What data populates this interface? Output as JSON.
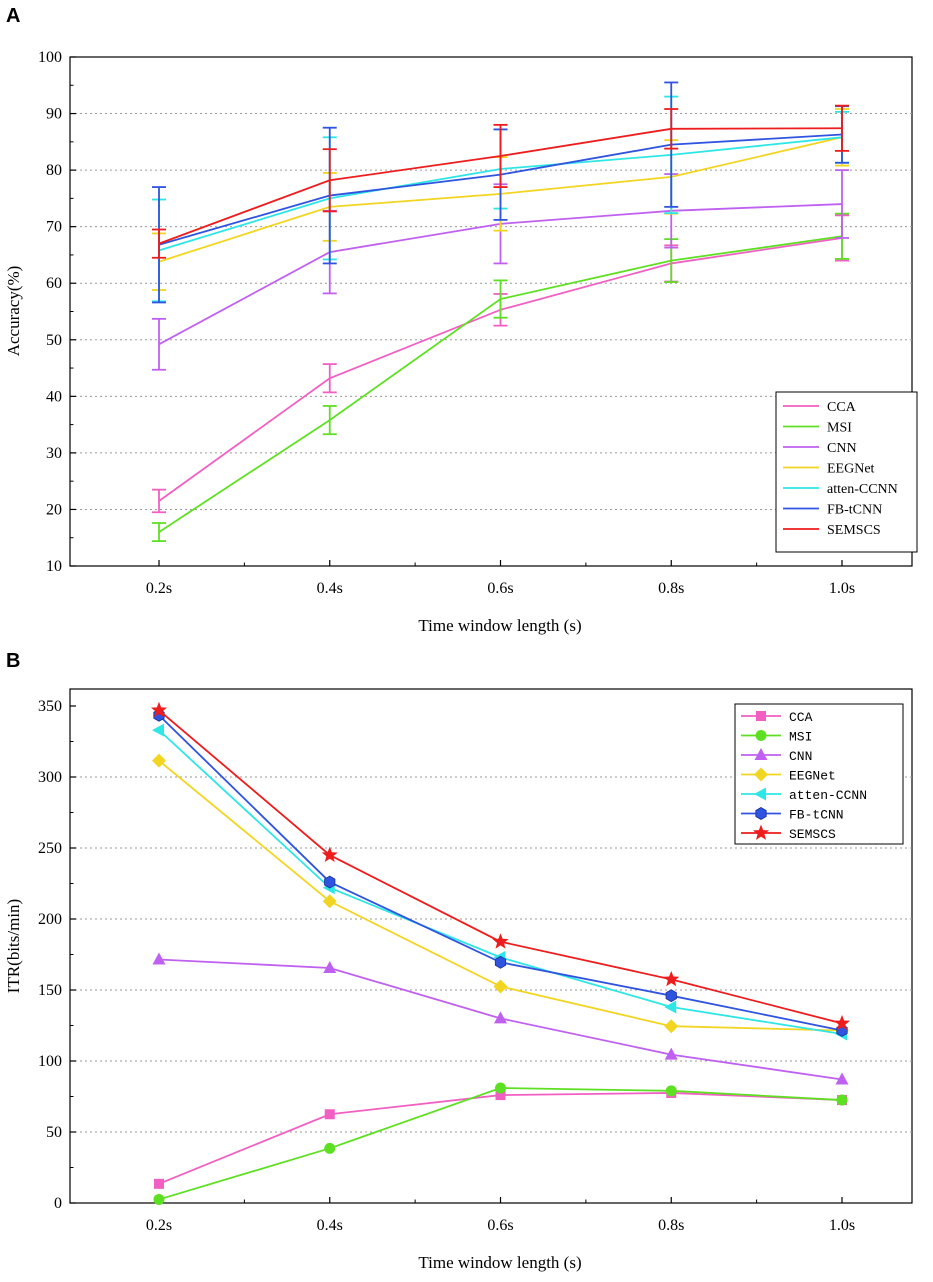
{
  "colors": {
    "CCA": "#f25fc3",
    "MSI": "#5ee022",
    "CNN": "#c060f0",
    "EEGNet": "#f2d520",
    "atten-CCNN": "#2ee6e6",
    "FB-tCNN": "#2f54e0",
    "SEMSCS": "#ee1c1c"
  },
  "chart_data": [
    {
      "panel": "A",
      "type": "line",
      "title": "",
      "xlabel": "Time window length (s)",
      "ylabel": "Accuracy(%)",
      "categories": [
        "0.2s",
        "0.4s",
        "0.6s",
        "0.8s",
        "1.0s"
      ],
      "ylim": [
        10,
        100
      ],
      "yticks": [
        "10",
        "20",
        "30",
        "40",
        "50",
        "60",
        "70",
        "80",
        "90",
        "100"
      ],
      "grid": "horizontal-dotted",
      "legend_position": "bottom-right",
      "series": [
        {
          "name": "CCA",
          "values": [
            21.5,
            43.2,
            55.3,
            63.5,
            68.0
          ],
          "errors": [
            2.0,
            2.5,
            2.8,
            3.2,
            4.0
          ],
          "marker": "none"
        },
        {
          "name": "MSI",
          "values": [
            16.0,
            35.8,
            57.2,
            64.0,
            68.3
          ],
          "errors": [
            1.6,
            2.5,
            3.3,
            3.8,
            4.0
          ],
          "marker": "none"
        },
        {
          "name": "CNN",
          "values": [
            49.2,
            65.5,
            70.5,
            72.8,
            74.0
          ],
          "errors": [
            4.5,
            7.3,
            7.0,
            6.5,
            6.0
          ],
          "marker": "none"
        },
        {
          "name": "EEGNet",
          "values": [
            63.8,
            73.5,
            75.8,
            78.8,
            85.8
          ],
          "errors": [
            5.0,
            6.0,
            6.5,
            6.5,
            5.0
          ],
          "marker": "none"
        },
        {
          "name": "atten-CCNN",
          "values": [
            65.8,
            75.0,
            80.2,
            82.7,
            85.8
          ],
          "errors": [
            9.0,
            10.8,
            7.0,
            10.3,
            4.5
          ],
          "marker": "none"
        },
        {
          "name": "FB-tCNN",
          "values": [
            66.8,
            75.5,
            79.2,
            84.5,
            86.3
          ],
          "errors": [
            10.2,
            12.0,
            8.0,
            11.0,
            5.0
          ],
          "marker": "none"
        },
        {
          "name": "SEMSCS",
          "values": [
            67.0,
            78.2,
            82.5,
            87.3,
            87.4
          ],
          "errors": [
            2.5,
            5.5,
            5.5,
            3.5,
            4.0
          ],
          "marker": "none"
        }
      ]
    },
    {
      "panel": "B",
      "type": "line",
      "title": "",
      "xlabel": "Time window length (s)",
      "ylabel": "ITR(bits/min)",
      "categories": [
        "0.2s",
        "0.4s",
        "0.6s",
        "0.8s",
        "1.0s"
      ],
      "ylim": [
        0,
        350
      ],
      "yticks": [
        "0",
        "50",
        "100",
        "150",
        "200",
        "250",
        "300",
        "350"
      ],
      "grid": "horizontal-dotted",
      "legend_position": "top-right",
      "series": [
        {
          "name": "CCA",
          "values": [
            13.5,
            62.5,
            76.0,
            77.5,
            72.5
          ],
          "marker": "square"
        },
        {
          "name": "MSI",
          "values": [
            2.5,
            38.5,
            81.0,
            79.0,
            72.5
          ],
          "marker": "circle"
        },
        {
          "name": "CNN",
          "values": [
            171.5,
            165.5,
            130.0,
            104.5,
            87.0
          ],
          "marker": "triangle-up"
        },
        {
          "name": "EEGNet",
          "values": [
            311.5,
            212.5,
            152.5,
            124.5,
            121.5
          ],
          "marker": "diamond"
        },
        {
          "name": "atten-CCNN",
          "values": [
            333.0,
            222.0,
            173.0,
            138.0,
            119.0
          ],
          "marker": "triangle-left"
        },
        {
          "name": "FB-tCNN",
          "values": [
            343.5,
            226.0,
            169.5,
            146.0,
            121.5
          ],
          "marker": "hexagon"
        },
        {
          "name": "SEMSCS",
          "values": [
            347.0,
            245.0,
            184.0,
            157.5,
            126.5
          ],
          "marker": "star"
        }
      ]
    }
  ]
}
